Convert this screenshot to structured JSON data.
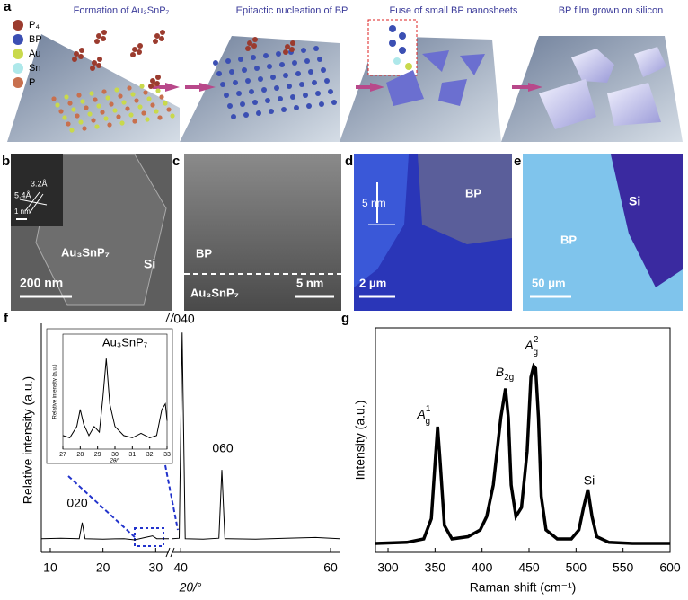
{
  "panel_labels": [
    "a",
    "b",
    "c",
    "d",
    "e",
    "f",
    "g"
  ],
  "panel_a": {
    "steps": [
      "Formation of Au₃SnP₇",
      "Epitactic nucleation of BP",
      "Fuse of small BP nanosheets",
      "BP film grown on silicon"
    ],
    "legend": [
      {
        "label": "P₄",
        "color": "#9b3b2e"
      },
      {
        "label": "BP",
        "color": "#3b4fb3"
      },
      {
        "label": "Au",
        "color": "#c9d94c"
      },
      {
        "label": "Sn",
        "color": "#aee8ea"
      },
      {
        "label": "P",
        "color": "#c8704e"
      }
    ]
  },
  "panel_b": {
    "lattice": [
      "3.2Å",
      "5.4Å"
    ],
    "inset_scale": "1 nm",
    "phase": "Au₃SnP₇",
    "substrate": "Si",
    "scale": "200 nm"
  },
  "panel_c": {
    "top": "BP",
    "bottom": "Au₃SnP₇",
    "scale": "5 nm"
  },
  "panel_d": {
    "height": "5 nm",
    "label": "BP",
    "scale": "2 μm"
  },
  "panel_e": {
    "substrate": "Si",
    "label": "BP",
    "scale": "50 μm"
  },
  "chart_data": [
    {
      "type": "line",
      "ylabel": "Relative intensity (a.u.)",
      "xlabel": "2θ/°",
      "xlim": [
        8.3,
        61.2
      ],
      "axis_break": [
        32.5,
        38.9
      ],
      "ylim": [
        0,
        1
      ],
      "xticks": [
        10,
        20,
        30,
        40,
        60
      ],
      "annotations": [
        "020",
        "040",
        "060"
      ],
      "series": [
        {
          "color": "#000000",
          "x": [
            8.3,
            12,
            15.5,
            16.05,
            16.6,
            20,
            24,
            26,
            28,
            29.4,
            30.2,
            32.5,
            null,
            38.9,
            39.8,
            40.2,
            40.6,
            43,
            45.1,
            45.5,
            45.9,
            50,
            54,
            58,
            61.2
          ],
          "values": [
            0.06,
            0.062,
            0.06,
            0.13,
            0.06,
            0.058,
            0.06,
            0.055,
            0.065,
            0.072,
            0.06,
            0.06,
            null,
            0.06,
            0.062,
            0.96,
            0.06,
            0.058,
            0.062,
            0.36,
            0.06,
            0.058,
            0.062,
            0.065,
            0.06
          ]
        }
      ],
      "inset": {
        "title": "Au₃SnP₇",
        "ylabel": "Relative intensity (a.u.)",
        "xlabel": "2θ/°",
        "xlim": [
          27,
          33
        ],
        "ylim": [
          0,
          1
        ],
        "xticks": [
          27,
          28,
          29,
          30,
          31,
          32,
          33
        ],
        "series": [
          {
            "color": "#000000",
            "x": [
              27,
              27.4,
              27.8,
              28,
              28.2,
              28.5,
              28.8,
              29.1,
              29.3,
              29.5,
              29.7,
              30,
              30.5,
              31,
              31.5,
              32,
              32.4,
              32.7,
              32.9,
              33
            ],
            "values": [
              0.12,
              0.1,
              0.2,
              0.35,
              0.22,
              0.12,
              0.2,
              0.15,
              0.45,
              0.8,
              0.4,
              0.2,
              0.12,
              0.1,
              0.14,
              0.1,
              0.12,
              0.35,
              0.4,
              0.25
            ]
          }
        ]
      }
    },
    {
      "type": "line",
      "ylabel": "Intensity (a.u.)",
      "xlabel": "Raman shift (cm⁻¹)",
      "xlim": [
        286.6,
        600
      ],
      "ylim": [
        0,
        1
      ],
      "xticks": [
        300,
        350,
        400,
        450,
        500,
        550,
        600
      ],
      "annotations": [
        {
          "base": "A",
          "sub": "g",
          "sup": "1"
        },
        {
          "base": "B",
          "sub": "2g"
        },
        {
          "base": "A",
          "sub": "g",
          "sup": "2"
        },
        "Si"
      ],
      "series": [
        {
          "color": "#000000",
          "x": [
            286.6,
            320,
            338,
            346,
            350,
            352.7,
            355.5,
            360,
            368,
            385,
            398,
            405,
            412,
            420,
            425,
            428,
            431,
            436,
            442,
            448,
            452,
            455,
            457,
            460,
            463,
            468,
            480,
            495,
            503,
            508,
            512.6,
            517,
            522,
            535,
            560,
            600
          ],
          "values": [
            0.04,
            0.045,
            0.06,
            0.15,
            0.4,
            0.56,
            0.4,
            0.12,
            0.06,
            0.07,
            0.1,
            0.16,
            0.3,
            0.6,
            0.73,
            0.6,
            0.3,
            0.16,
            0.2,
            0.45,
            0.78,
            0.83,
            0.82,
            0.6,
            0.25,
            0.1,
            0.06,
            0.06,
            0.1,
            0.2,
            0.28,
            0.16,
            0.07,
            0.045,
            0.04,
            0.04
          ]
        }
      ]
    }
  ]
}
